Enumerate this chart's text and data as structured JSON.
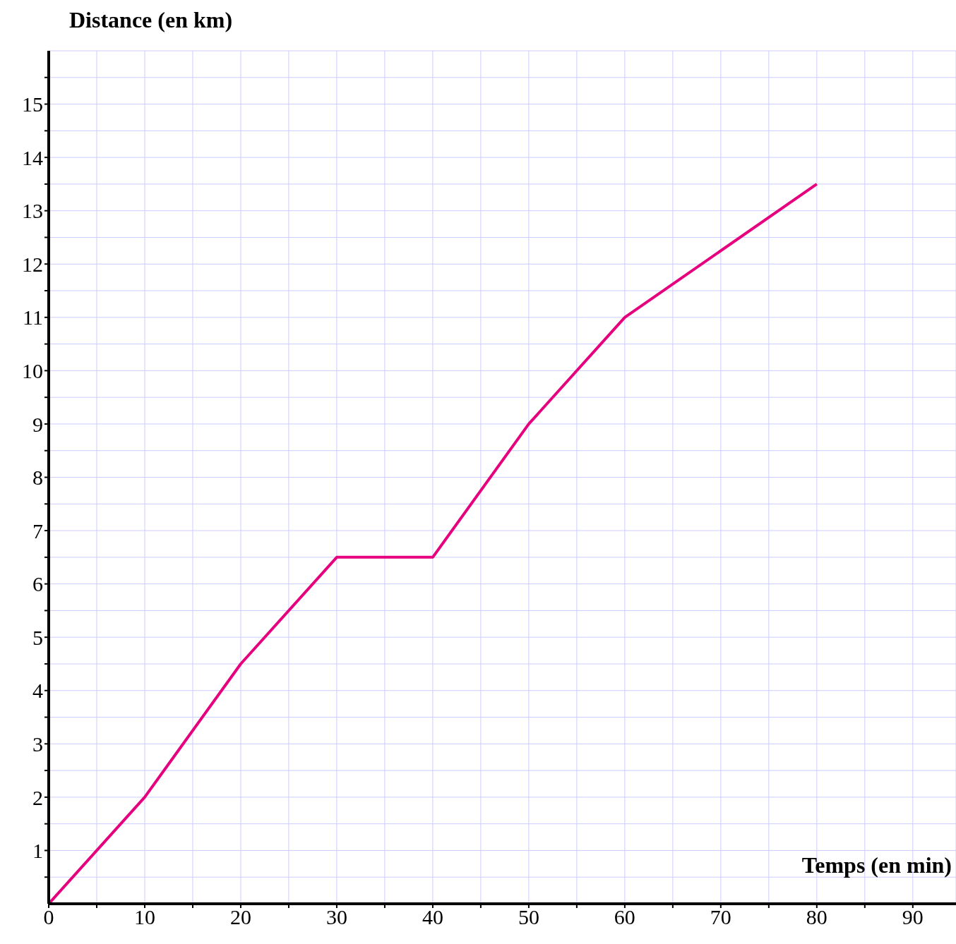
{
  "chart_data": {
    "type": "line",
    "xlabel": "Temps (en min)",
    "ylabel": "Distance (en km)",
    "x": [
      0,
      10,
      20,
      30,
      40,
      50,
      60,
      80
    ],
    "series": [
      {
        "color": "#e6007e",
        "values": [
          0,
          2,
          4.5,
          6.5,
          6.5,
          9,
          11,
          13.5
        ]
      }
    ],
    "xlim": [
      0,
      94.5
    ],
    "ylim": [
      0,
      16
    ],
    "xticks": [
      0,
      {
        "value": 5,
        "label": null
      },
      10,
      {
        "value": 15,
        "label": null
      },
      20,
      {
        "value": 25,
        "label": null
      },
      30,
      {
        "value": 35,
        "label": null
      },
      40,
      {
        "value": 45,
        "label": null
      },
      50,
      {
        "value": 55,
        "label": null
      },
      60,
      {
        "value": 65,
        "label": null
      },
      70,
      {
        "value": 75,
        "label": null
      },
      80,
      {
        "value": 85,
        "label": null
      },
      90
    ],
    "yticks": [
      {
        "value": 0.5,
        "label": null
      },
      1,
      {
        "value": 1.5,
        "label": null
      },
      2,
      {
        "value": 2.5,
        "label": null
      },
      3,
      {
        "value": 3.5,
        "label": null
      },
      4,
      {
        "value": 4.5,
        "label": null
      },
      5,
      {
        "value": 5.5,
        "label": null
      },
      6,
      {
        "value": 6.5,
        "label": null
      },
      7,
      {
        "value": 7.5,
        "label": null
      },
      8,
      {
        "value": 8.5,
        "label": null
      },
      9,
      {
        "value": 9.5,
        "label": null
      },
      10,
      {
        "value": 10.5,
        "label": null
      },
      11,
      {
        "value": 11.5,
        "label": null
      },
      12,
      {
        "value": 12.5,
        "label": null
      },
      13,
      {
        "value": 13.5,
        "label": null
      },
      14,
      {
        "value": 14.5,
        "label": null
      },
      15,
      {
        "value": 15.5,
        "label": null
      }
    ],
    "grid": true
  }
}
